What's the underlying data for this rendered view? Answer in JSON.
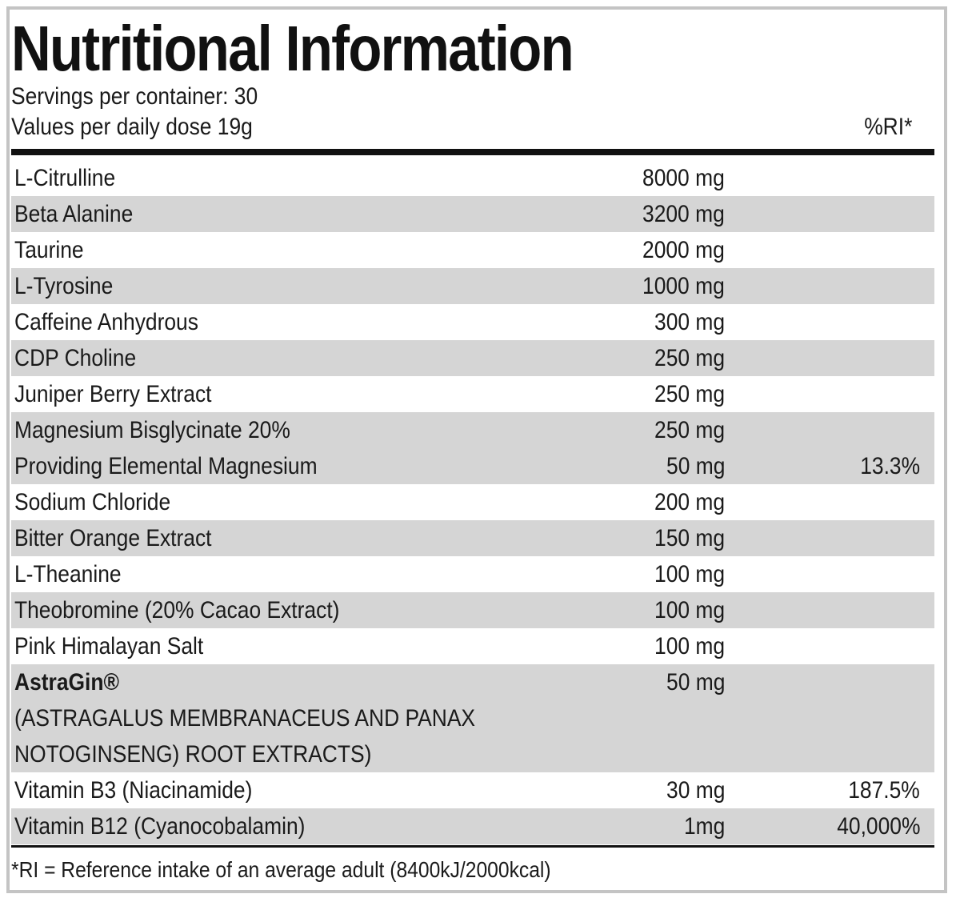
{
  "title": "Nutritional Information",
  "servings": "Servings per container: 30",
  "dose": "Values per daily dose 19g",
  "ri_header": "%RI*",
  "rows": [
    {
      "name": "L-Citrulline",
      "amount": "8000 mg",
      "ri": "",
      "shaded": false
    },
    {
      "name": "Beta Alanine",
      "amount": "3200 mg",
      "ri": "",
      "shaded": true
    },
    {
      "name": "Taurine",
      "amount": "2000 mg",
      "ri": "",
      "shaded": false
    },
    {
      "name": "L-Tyrosine",
      "amount": "1000 mg",
      "ri": "",
      "shaded": true
    },
    {
      "name": "Caffeine Anhydrous",
      "amount": "300 mg",
      "ri": "",
      "shaded": false
    },
    {
      "name": "CDP Choline",
      "amount": "250 mg",
      "ri": "",
      "shaded": true
    },
    {
      "name": "Juniper Berry Extract",
      "amount": "250 mg",
      "ri": "",
      "shaded": false
    },
    {
      "name": "Magnesium Bisglycinate 20%",
      "amount": "250 mg",
      "ri": "",
      "shaded": true
    },
    {
      "name": "Providing Elemental Magnesium",
      "amount": "50 mg",
      "ri": "13.3%",
      "shaded": true
    },
    {
      "name": "Sodium Chloride",
      "amount": "200 mg",
      "ri": "",
      "shaded": false
    },
    {
      "name": "Bitter Orange Extract",
      "amount": "150 mg",
      "ri": "",
      "shaded": true
    },
    {
      "name": "L-Theanine",
      "amount": "100 mg",
      "ri": "",
      "shaded": false
    },
    {
      "name": "Theobromine (20% Cacao Extract)",
      "amount": "100 mg",
      "ri": "",
      "shaded": true
    },
    {
      "name": "Pink Himalayan Salt",
      "amount": "100 mg",
      "ri": "",
      "shaded": false
    },
    {
      "name": "AstraGin®",
      "sub1": "(ASTRAGALUS MEMBRANACEUS AND PANAX",
      "sub2": "NOTOGINSENG) ROOT EXTRACTS)",
      "amount": "50 mg",
      "ri": "",
      "shaded": true,
      "multiline": true
    },
    {
      "name": "Vitamin B3 (Niacinamide)",
      "amount": "30 mg",
      "ri": "187.5%",
      "shaded": false
    },
    {
      "name": "Vitamin B12 (Cyanocobalamin)",
      "amount": "1mg",
      "ri": "40,000%",
      "shaded": true
    }
  ],
  "footnote": "*RI = Reference intake of an average adult (8400kJ/2000kcal)"
}
